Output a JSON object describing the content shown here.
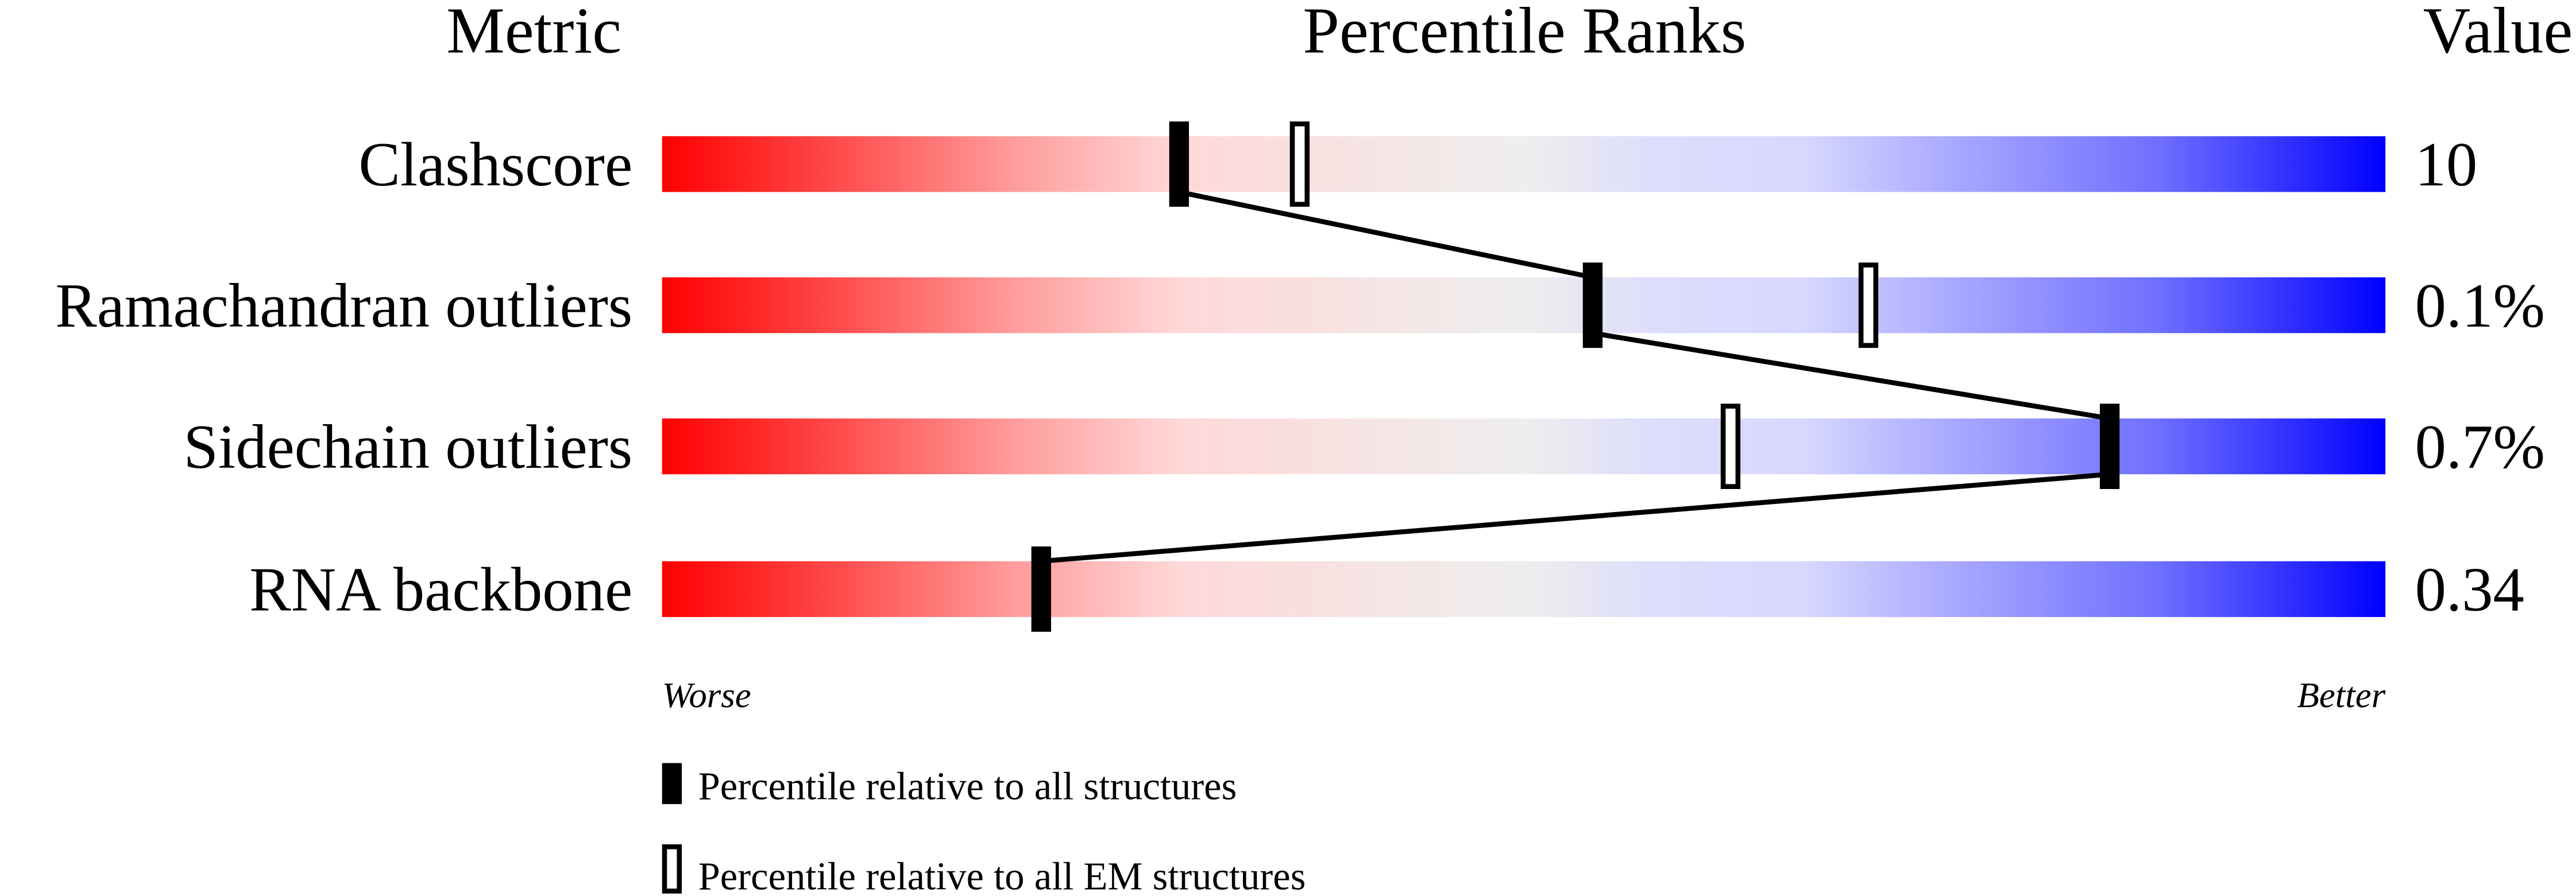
{
  "chart_data": {
    "type": "bar",
    "headers": {
      "metric": "Metric",
      "title": "Percentile Ranks",
      "value": "Value"
    },
    "xlim": [
      0,
      100
    ],
    "axis_labels": {
      "left": "Worse",
      "right": "Better"
    },
    "rows": [
      {
        "metric": "Clashscore",
        "value": "10",
        "all": 30,
        "em": 37
      },
      {
        "metric": "Ramachandran outliers",
        "value": "0.1%",
        "all": 54,
        "em": 70
      },
      {
        "metric": "Sidechain outliers",
        "value": "0.7%",
        "all": 84,
        "em": 62
      },
      {
        "metric": "RNA backbone",
        "value": "0.34",
        "all": 22,
        "em": null
      }
    ],
    "legend": {
      "all": "Percentile relative to all structures",
      "em": "Percentile relative to all EM structures"
    },
    "colors": {
      "worse": "#ff0000",
      "middle": "#eeeeee",
      "better": "#0000ff",
      "marker": "#000000"
    }
  }
}
